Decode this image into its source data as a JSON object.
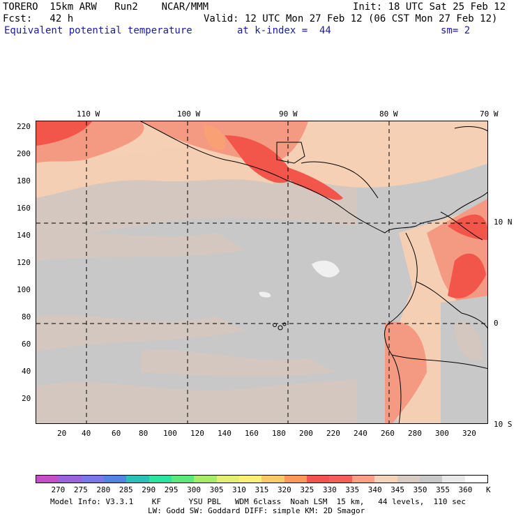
{
  "header": {
    "line1_left": "TORERO  15km ARW   Run2    NCAR/MMM",
    "line1_right": "Init: 18 UTC Sat 25 Feb 12",
    "line2_left": "Fcst:   42 h",
    "line2_right": "Valid: 12 UTC Mon 27 Feb 12 (06 CST Mon 27 Feb 12)",
    "line3_field": "Equivalent potential temperature",
    "line3_level": "at k-index =  44",
    "line3_sm": "sm= 2"
  },
  "map": {
    "top_lon_labels": [
      "110 W",
      "100 W",
      "90 W",
      "80 W",
      "70 W"
    ],
    "right_lat_labels": [
      "10 N",
      "0",
      "10 S"
    ],
    "left_y_ticks": [
      "220",
      "200",
      "180",
      "160",
      "140",
      "120",
      "100",
      "80",
      "60",
      "40",
      "20"
    ],
    "bottom_x_ticks": [
      "20",
      "40",
      "60",
      "80",
      "100",
      "120",
      "140",
      "160",
      "180",
      "200",
      "220",
      "240",
      "260",
      "280",
      "300",
      "320"
    ]
  },
  "colorbar": {
    "labels": [
      "270",
      "275",
      "280",
      "285",
      "290",
      "295",
      "300",
      "305",
      "310",
      "315",
      "320",
      "325",
      "330",
      "335",
      "340",
      "345",
      "350",
      "355",
      "360"
    ],
    "unit": "K",
    "colors": [
      "#c24fc9",
      "#9a63d9",
      "#7a78e6",
      "#4f86e0",
      "#2cc0b8",
      "#2ee3a0",
      "#5ee878",
      "#a6ec6a",
      "#e2ef74",
      "#fdf07a",
      "#fcc86a",
      "#f99a5c",
      "#f2554a",
      "#f3605a",
      "#f9a087",
      "#f5d3b8",
      "#d7cbc4",
      "#c8c8c8",
      "#e8e8e8",
      "#ffffff"
    ]
  },
  "footer": {
    "line1": "Model Info: V3.3.1    KF      YSU PBL   WDM 6class  Noah LSM  15 km,   44 levels,  110 sec",
    "line2": "LW: Godd SW: Goddard DIFF: simple KM: 2D Smagor"
  }
}
